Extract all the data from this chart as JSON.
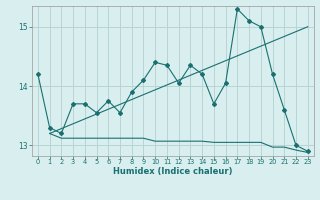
{
  "xlabel": "Humidex (Indice chaleur)",
  "background_color": "#d9eeee",
  "grid_color": "#b8d4d4",
  "line_color": "#1a7070",
  "xlim": [
    -0.5,
    23.5
  ],
  "ylim": [
    12.82,
    15.35
  ],
  "yticks": [
    13,
    14,
    15
  ],
  "xticks": [
    0,
    1,
    2,
    3,
    4,
    5,
    6,
    7,
    8,
    9,
    10,
    11,
    12,
    13,
    14,
    15,
    16,
    17,
    18,
    19,
    20,
    21,
    22,
    23
  ],
  "series1_x": [
    0,
    1,
    2,
    3,
    4,
    5,
    6,
    7,
    8,
    9,
    10,
    11,
    12,
    13,
    14,
    15,
    16,
    17,
    18,
    19,
    20,
    21,
    22,
    23
  ],
  "series1_y": [
    14.2,
    13.3,
    13.2,
    13.7,
    13.7,
    13.55,
    13.75,
    13.55,
    13.9,
    14.1,
    14.4,
    14.35,
    14.05,
    14.35,
    14.2,
    13.7,
    14.05,
    15.3,
    15.1,
    15.0,
    14.2,
    13.6,
    13.0,
    12.9
  ],
  "series2_x": [
    1,
    2,
    3,
    4,
    5,
    6,
    7,
    8,
    9,
    10,
    11,
    12,
    13,
    14,
    15,
    16,
    17,
    18,
    19,
    20,
    21,
    22,
    23
  ],
  "series2_y": [
    13.2,
    13.12,
    13.12,
    13.12,
    13.12,
    13.12,
    13.12,
    13.12,
    13.12,
    13.07,
    13.07,
    13.07,
    13.07,
    13.07,
    13.05,
    13.05,
    13.05,
    13.05,
    13.05,
    12.97,
    12.97,
    12.92,
    12.88
  ],
  "series3_x": [
    1,
    23
  ],
  "series3_y": [
    13.2,
    15.0
  ]
}
